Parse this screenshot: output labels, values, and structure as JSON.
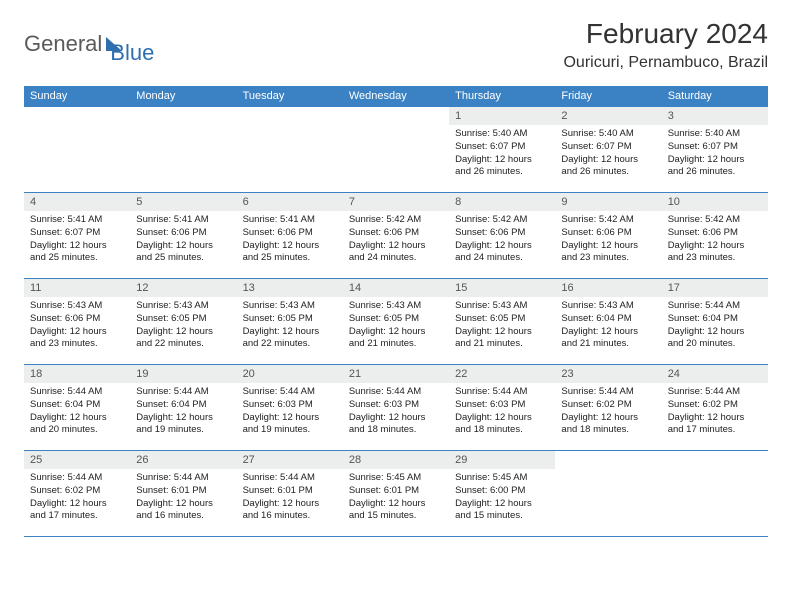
{
  "brand": {
    "word1": "General",
    "word2": "Blue"
  },
  "title": "February 2024",
  "location": "Ouricuri, Pernambuco, Brazil",
  "colors": {
    "header_bg": "#3b82c4",
    "header_text": "#ffffff",
    "daynum_bg": "#eceded",
    "border": "#3b82c4",
    "brand_gray": "#5a5a5a",
    "brand_blue": "#2f6fb0"
  },
  "day_headers": [
    "Sunday",
    "Monday",
    "Tuesday",
    "Wednesday",
    "Thursday",
    "Friday",
    "Saturday"
  ],
  "weeks": [
    [
      null,
      null,
      null,
      null,
      {
        "n": "1",
        "sr": "Sunrise: 5:40 AM",
        "ss": "Sunset: 6:07 PM",
        "dl1": "Daylight: 12 hours",
        "dl2": "and 26 minutes."
      },
      {
        "n": "2",
        "sr": "Sunrise: 5:40 AM",
        "ss": "Sunset: 6:07 PM",
        "dl1": "Daylight: 12 hours",
        "dl2": "and 26 minutes."
      },
      {
        "n": "3",
        "sr": "Sunrise: 5:40 AM",
        "ss": "Sunset: 6:07 PM",
        "dl1": "Daylight: 12 hours",
        "dl2": "and 26 minutes."
      }
    ],
    [
      {
        "n": "4",
        "sr": "Sunrise: 5:41 AM",
        "ss": "Sunset: 6:07 PM",
        "dl1": "Daylight: 12 hours",
        "dl2": "and 25 minutes."
      },
      {
        "n": "5",
        "sr": "Sunrise: 5:41 AM",
        "ss": "Sunset: 6:06 PM",
        "dl1": "Daylight: 12 hours",
        "dl2": "and 25 minutes."
      },
      {
        "n": "6",
        "sr": "Sunrise: 5:41 AM",
        "ss": "Sunset: 6:06 PM",
        "dl1": "Daylight: 12 hours",
        "dl2": "and 25 minutes."
      },
      {
        "n": "7",
        "sr": "Sunrise: 5:42 AM",
        "ss": "Sunset: 6:06 PM",
        "dl1": "Daylight: 12 hours",
        "dl2": "and 24 minutes."
      },
      {
        "n": "8",
        "sr": "Sunrise: 5:42 AM",
        "ss": "Sunset: 6:06 PM",
        "dl1": "Daylight: 12 hours",
        "dl2": "and 24 minutes."
      },
      {
        "n": "9",
        "sr": "Sunrise: 5:42 AM",
        "ss": "Sunset: 6:06 PM",
        "dl1": "Daylight: 12 hours",
        "dl2": "and 23 minutes."
      },
      {
        "n": "10",
        "sr": "Sunrise: 5:42 AM",
        "ss": "Sunset: 6:06 PM",
        "dl1": "Daylight: 12 hours",
        "dl2": "and 23 minutes."
      }
    ],
    [
      {
        "n": "11",
        "sr": "Sunrise: 5:43 AM",
        "ss": "Sunset: 6:06 PM",
        "dl1": "Daylight: 12 hours",
        "dl2": "and 23 minutes."
      },
      {
        "n": "12",
        "sr": "Sunrise: 5:43 AM",
        "ss": "Sunset: 6:05 PM",
        "dl1": "Daylight: 12 hours",
        "dl2": "and 22 minutes."
      },
      {
        "n": "13",
        "sr": "Sunrise: 5:43 AM",
        "ss": "Sunset: 6:05 PM",
        "dl1": "Daylight: 12 hours",
        "dl2": "and 22 minutes."
      },
      {
        "n": "14",
        "sr": "Sunrise: 5:43 AM",
        "ss": "Sunset: 6:05 PM",
        "dl1": "Daylight: 12 hours",
        "dl2": "and 21 minutes."
      },
      {
        "n": "15",
        "sr": "Sunrise: 5:43 AM",
        "ss": "Sunset: 6:05 PM",
        "dl1": "Daylight: 12 hours",
        "dl2": "and 21 minutes."
      },
      {
        "n": "16",
        "sr": "Sunrise: 5:43 AM",
        "ss": "Sunset: 6:04 PM",
        "dl1": "Daylight: 12 hours",
        "dl2": "and 21 minutes."
      },
      {
        "n": "17",
        "sr": "Sunrise: 5:44 AM",
        "ss": "Sunset: 6:04 PM",
        "dl1": "Daylight: 12 hours",
        "dl2": "and 20 minutes."
      }
    ],
    [
      {
        "n": "18",
        "sr": "Sunrise: 5:44 AM",
        "ss": "Sunset: 6:04 PM",
        "dl1": "Daylight: 12 hours",
        "dl2": "and 20 minutes."
      },
      {
        "n": "19",
        "sr": "Sunrise: 5:44 AM",
        "ss": "Sunset: 6:04 PM",
        "dl1": "Daylight: 12 hours",
        "dl2": "and 19 minutes."
      },
      {
        "n": "20",
        "sr": "Sunrise: 5:44 AM",
        "ss": "Sunset: 6:03 PM",
        "dl1": "Daylight: 12 hours",
        "dl2": "and 19 minutes."
      },
      {
        "n": "21",
        "sr": "Sunrise: 5:44 AM",
        "ss": "Sunset: 6:03 PM",
        "dl1": "Daylight: 12 hours",
        "dl2": "and 18 minutes."
      },
      {
        "n": "22",
        "sr": "Sunrise: 5:44 AM",
        "ss": "Sunset: 6:03 PM",
        "dl1": "Daylight: 12 hours",
        "dl2": "and 18 minutes."
      },
      {
        "n": "23",
        "sr": "Sunrise: 5:44 AM",
        "ss": "Sunset: 6:02 PM",
        "dl1": "Daylight: 12 hours",
        "dl2": "and 18 minutes."
      },
      {
        "n": "24",
        "sr": "Sunrise: 5:44 AM",
        "ss": "Sunset: 6:02 PM",
        "dl1": "Daylight: 12 hours",
        "dl2": "and 17 minutes."
      }
    ],
    [
      {
        "n": "25",
        "sr": "Sunrise: 5:44 AM",
        "ss": "Sunset: 6:02 PM",
        "dl1": "Daylight: 12 hours",
        "dl2": "and 17 minutes."
      },
      {
        "n": "26",
        "sr": "Sunrise: 5:44 AM",
        "ss": "Sunset: 6:01 PM",
        "dl1": "Daylight: 12 hours",
        "dl2": "and 16 minutes."
      },
      {
        "n": "27",
        "sr": "Sunrise: 5:44 AM",
        "ss": "Sunset: 6:01 PM",
        "dl1": "Daylight: 12 hours",
        "dl2": "and 16 minutes."
      },
      {
        "n": "28",
        "sr": "Sunrise: 5:45 AM",
        "ss": "Sunset: 6:01 PM",
        "dl1": "Daylight: 12 hours",
        "dl2": "and 15 minutes."
      },
      {
        "n": "29",
        "sr": "Sunrise: 5:45 AM",
        "ss": "Sunset: 6:00 PM",
        "dl1": "Daylight: 12 hours",
        "dl2": "and 15 minutes."
      },
      null,
      null
    ]
  ]
}
